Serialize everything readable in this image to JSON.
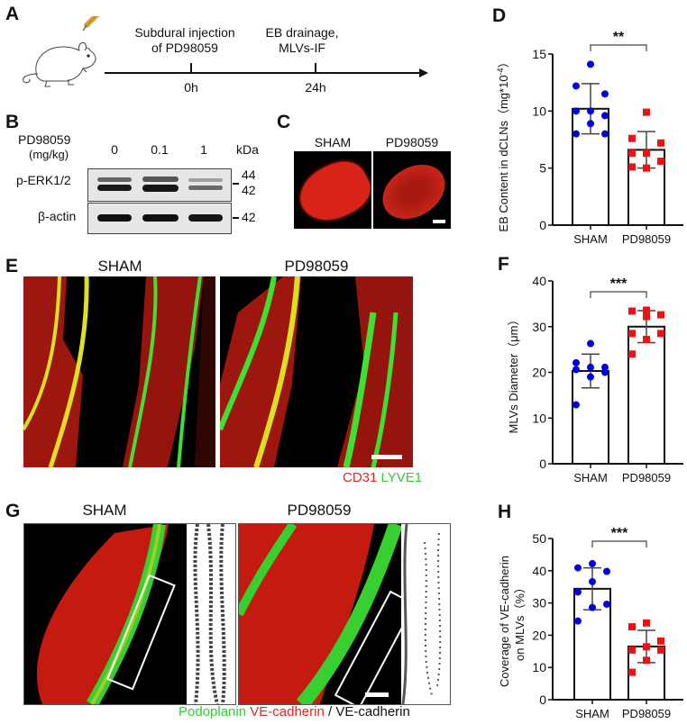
{
  "panels": {
    "A": {
      "label": "A",
      "timeline": {
        "events": [
          {
            "top": "Subdural injection",
            "bottom": "of PD98059",
            "time": "0h"
          },
          {
            "top": "EB drainage,",
            "bottom": "MLVs-IF",
            "time": "24h"
          }
        ]
      },
      "icons": [
        "mouse-icon",
        "syringe-icon"
      ]
    },
    "B": {
      "label": "B",
      "treatment_label": "PD98059",
      "unit_label": "(mg/kg)",
      "doses": [
        "0",
        "0.1",
        "1"
      ],
      "kda_label": "kDa",
      "blots": [
        {
          "name": "p-ERK1/2",
          "markers": [
            "44",
            "42"
          ]
        },
        {
          "name": "β-actin",
          "markers": [
            "42"
          ]
        }
      ]
    },
    "C": {
      "label": "C",
      "groups": [
        "SHAM",
        "PD98059"
      ]
    },
    "E": {
      "label": "E",
      "groups": [
        "SHAM",
        "PD98059"
      ],
      "stain_red": "CD31",
      "stain_green": "LYVE1",
      "colors": {
        "red": "#e8261c",
        "green": "#33cc33"
      }
    },
    "G": {
      "label": "G",
      "groups": [
        "SHAM",
        "PD98059"
      ],
      "stain_green": "Podoplanin",
      "stain_red": "VE-cadherin",
      "stain_sep": "/",
      "stain_gray": "VE-cadherin"
    },
    "D": {
      "label": "D"
    },
    "F": {
      "label": "F"
    },
    "H": {
      "label": "H"
    }
  },
  "chart_data": [
    {
      "panel": "D",
      "type": "bar",
      "categories": [
        "SHAM",
        "PD98059"
      ],
      "ylabel": "EB Content in dCLNs（mg*10⁻⁴）",
      "ylabel_main": "EB Content in dCLNs（mg*10",
      "ylabel_sup": "-4",
      "ylabel_end": "）",
      "ylim": [
        0,
        15
      ],
      "yticks": [
        0,
        5,
        10,
        15
      ],
      "significance": "**",
      "series": [
        {
          "name": "SHAM",
          "mean": 10.2,
          "sd": 2.2,
          "color": "#0000e0",
          "marker": "circle",
          "points": [
            14.1,
            12.2,
            11.5,
            10.0,
            10.0,
            9.6,
            8.9,
            8.0,
            8.0
          ]
        },
        {
          "name": "PD98059",
          "mean": 6.6,
          "sd": 1.6,
          "color": "#ee1111",
          "marker": "square",
          "points": [
            9.9,
            7.6,
            7.2,
            6.3,
            6.3,
            5.6,
            5.0,
            5.1
          ]
        }
      ]
    },
    {
      "panel": "F",
      "type": "bar",
      "categories": [
        "SHAM",
        "PD98059"
      ],
      "ylabel": "MLVs Diameter（μm）",
      "ylim": [
        0,
        40
      ],
      "yticks": [
        0,
        10,
        20,
        30,
        40
      ],
      "significance": "***",
      "series": [
        {
          "name": "SHAM",
          "mean": 20.3,
          "sd": 3.7,
          "color": "#0000e0",
          "marker": "circle",
          "points": [
            26.3,
            22.1,
            21.1,
            21.1,
            20.6,
            20.0,
            19.0,
            12.9
          ]
        },
        {
          "name": "PD98059",
          "mean": 30.0,
          "sd": 3.5,
          "color": "#ee1111",
          "marker": "square",
          "points": [
            33.6,
            33.4,
            32.6,
            32.2,
            28.5,
            28.5,
            27.2,
            24.0
          ]
        }
      ]
    },
    {
      "panel": "H",
      "type": "bar",
      "categories": [
        "SHAM",
        "PD98059"
      ],
      "ylabel": "Coverage of VE-cadherin on MLVs（%）",
      "ylabel_line1": "Coverage of VE-cadherin",
      "ylabel_line2": "on MLVs（%）",
      "ylim": [
        0,
        50
      ],
      "yticks": [
        0,
        10,
        20,
        30,
        40,
        50
      ],
      "significance": "***",
      "series": [
        {
          "name": "SHAM",
          "mean": 34.4,
          "sd": 6.5,
          "color": "#0000e0",
          "marker": "circle",
          "points": [
            42.2,
            40.9,
            39.8,
            36.6,
            33.4,
            29.6,
            28.6,
            24.4
          ]
        },
        {
          "name": "PD98059",
          "mean": 16.5,
          "sd": 5.0,
          "color": "#ee1111",
          "marker": "square",
          "points": [
            23.8,
            22.6,
            18.2,
            16.4,
            15.4,
            15.4,
            12.2,
            8.5
          ]
        }
      ]
    }
  ]
}
